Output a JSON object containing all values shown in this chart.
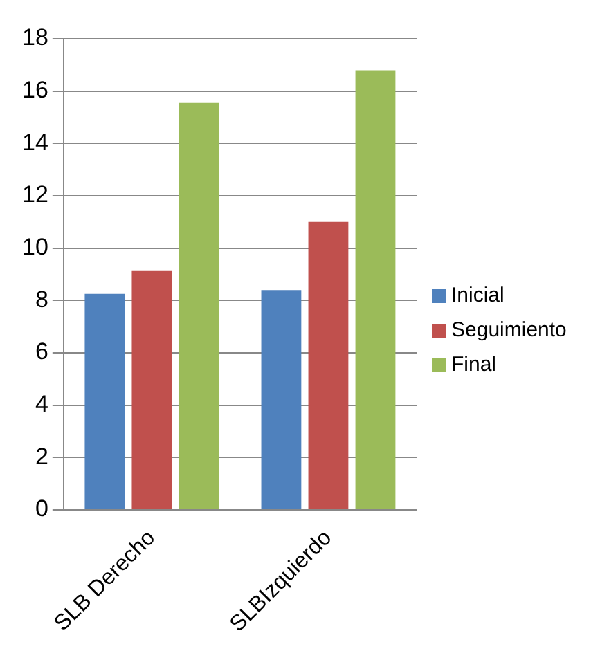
{
  "chart_data": {
    "type": "bar",
    "categories": [
      "SLB Derecho",
      "SLBIzquierdo"
    ],
    "series": [
      {
        "name": "Inicial",
        "color": "#4f81bd",
        "values": [
          8.25,
          8.4
        ]
      },
      {
        "name": "Seguimiento",
        "color": "#c0504d",
        "values": [
          9.15,
          11.0
        ]
      },
      {
        "name": "Final",
        "color": "#9bbb59",
        "values": [
          15.55,
          16.8
        ]
      }
    ],
    "ylim": [
      0,
      18
    ],
    "yticks": [
      0,
      2,
      4,
      6,
      8,
      10,
      12,
      14,
      16,
      18
    ],
    "grid": "y",
    "legend": "right"
  }
}
